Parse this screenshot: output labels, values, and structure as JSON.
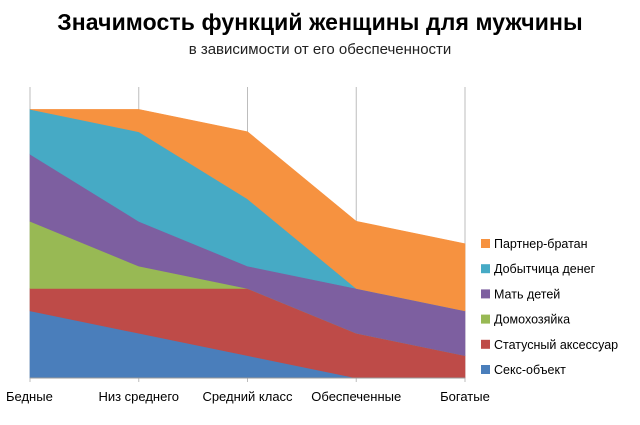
{
  "chart_data": {
    "type": "area",
    "stacked": true,
    "title": "Значимость функций женщины для мужчины",
    "subtitle": "в зависимости от его обеспеченности",
    "categories": [
      "Бедные",
      "Низ среднего",
      "Средний класс",
      "Обеспеченные",
      "Богатые"
    ],
    "series": [
      {
        "name": "Секс-объект",
        "values": [
          3,
          2,
          1,
          0,
          0
        ],
        "color": "#4a7ebb"
      },
      {
        "name": "Статусный аксессуар",
        "values": [
          1,
          2,
          3,
          2,
          1
        ],
        "color": "#be4b48"
      },
      {
        "name": "Домохозяйка",
        "values": [
          3,
          1,
          0,
          0,
          0
        ],
        "color": "#98b954"
      },
      {
        "name": "Мать детей",
        "values": [
          3,
          2,
          1,
          2,
          2
        ],
        "color": "#7d5fa0"
      },
      {
        "name": "Добытчица денег",
        "values": [
          2,
          4,
          3,
          0,
          0
        ],
        "color": "#46aac5"
      },
      {
        "name": "Партнер-братан",
        "values": [
          0,
          1,
          3,
          3,
          3
        ],
        "color": "#f69240"
      }
    ],
    "ylim": [
      0,
      13
    ],
    "xlabel": "",
    "ylabel": "",
    "grid": "vertical",
    "legend": "right"
  }
}
